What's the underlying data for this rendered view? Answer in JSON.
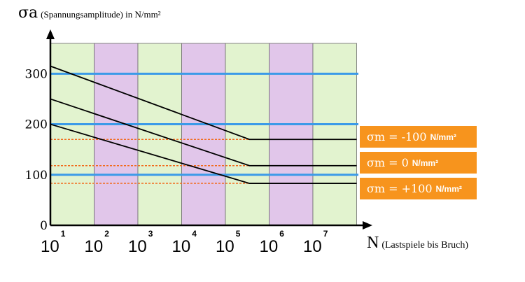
{
  "chart_data": {
    "type": "line",
    "ylabel_symbol": "σa",
    "ylabel_text": "(Spannungsamplitude) in N/mm²",
    "xlabel_symbol": "N",
    "xlabel_text": "(Lastspiele bis Bruch)",
    "x_ticks": [
      {
        "base": "10",
        "exp": "1"
      },
      {
        "base": "10",
        "exp": "2"
      },
      {
        "base": "10",
        "exp": "3"
      },
      {
        "base": "10",
        "exp": "4"
      },
      {
        "base": "10",
        "exp": "5"
      },
      {
        "base": "10",
        "exp": "6"
      },
      {
        "base": "10",
        "exp": "7"
      }
    ],
    "xlim": [
      1,
      8.2
    ],
    "ylim": [
      0,
      360
    ],
    "y_ticks": [
      0,
      100,
      200,
      300
    ],
    "band_colors": [
      "#e2f3cf",
      "#e1c6ea"
    ],
    "gridlines": [
      300,
      200,
      100
    ],
    "series": [
      {
        "name": "σm = -100 N/mm²",
        "points": [
          [
            1,
            315
          ],
          [
            5.55,
            170
          ],
          [
            8,
            170
          ]
        ],
        "reference_level": 170
      },
      {
        "name": "σm = 0 N/mm²",
        "points": [
          [
            1,
            250
          ],
          [
            5.55,
            118
          ],
          [
            8,
            118
          ]
        ],
        "reference_level": 118
      },
      {
        "name": "σm = +100 N/mm²",
        "points": [
          [
            1,
            200
          ],
          [
            5.55,
            83
          ],
          [
            8,
            83
          ]
        ],
        "reference_level": 83
      }
    ],
    "legend": [
      {
        "symbol": "σm",
        "text": "= -100",
        "unit": "N/mm²"
      },
      {
        "symbol": "σm",
        "text": "= 0",
        "unit": "N/mm²"
      },
      {
        "symbol": "σm",
        "text": "= +100",
        "unit": "N/mm²"
      }
    ],
    "colors": {
      "gridline": "#3b9ae8",
      "reference": "#f26a1b",
      "curve": "#000000",
      "legend_bg": "#f7941d"
    }
  }
}
